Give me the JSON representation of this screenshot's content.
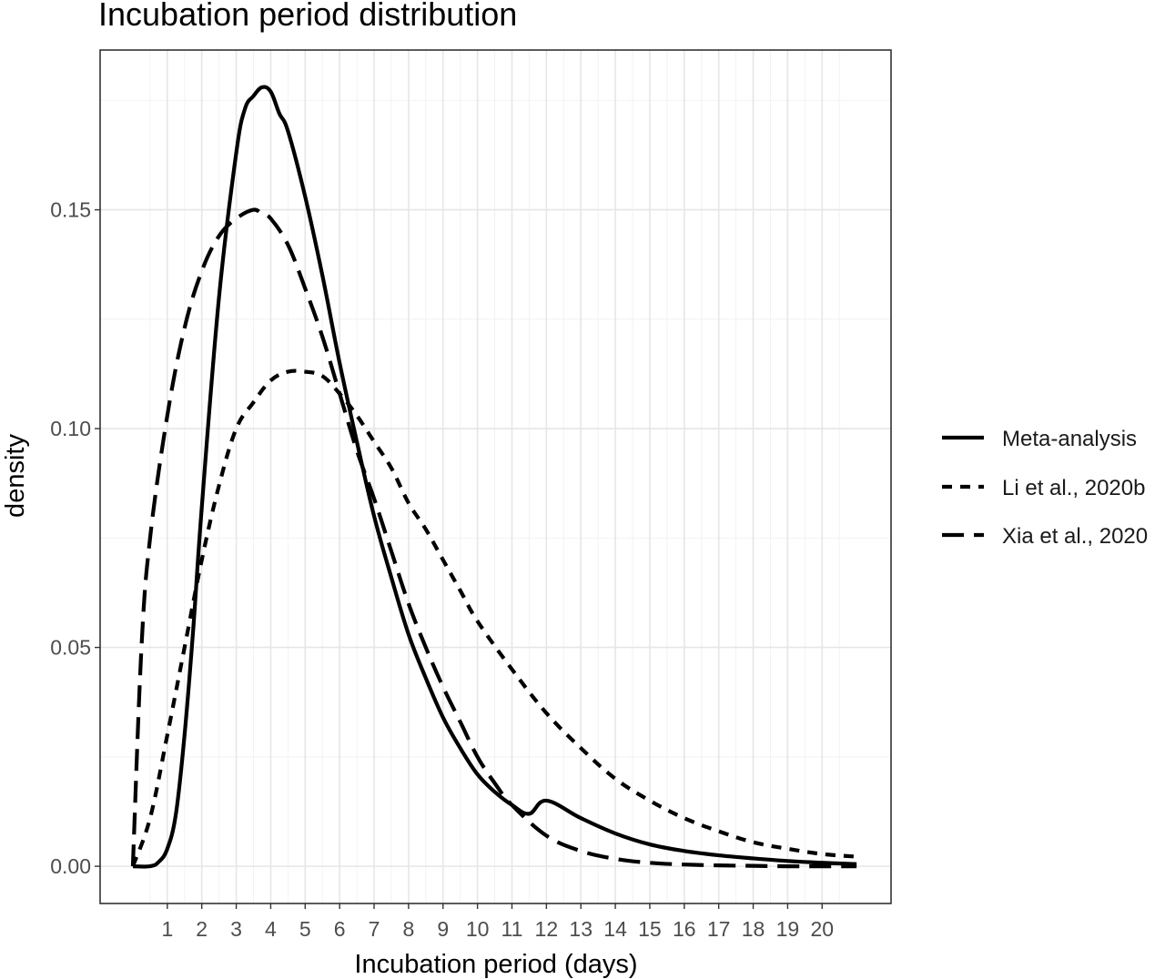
{
  "chart_data": {
    "type": "line",
    "title": "Incubation period distribution",
    "xlabel": "Incubation period (days)",
    "ylabel": "density",
    "xlim": [
      -0.95,
      22.0
    ],
    "ylim": [
      -0.0085,
      0.1865
    ],
    "x_ticks": [
      1,
      2,
      3,
      4,
      5,
      6,
      7,
      8,
      9,
      10,
      11,
      12,
      13,
      14,
      15,
      16,
      17,
      18,
      19,
      20
    ],
    "x_tick_labels": [
      "1",
      "2",
      "3",
      "4",
      "5",
      "6",
      "7",
      "8",
      "9",
      "10",
      "11",
      "12",
      "13",
      "14",
      "15",
      "16",
      "17",
      "18",
      "19",
      "20"
    ],
    "y_ticks": [
      0.0,
      0.05,
      0.1,
      0.15
    ],
    "y_tick_labels": [
      "0.00",
      "0.05",
      "0.10",
      "0.15"
    ],
    "grid": true,
    "legend_position": "right",
    "series": [
      {
        "name": "Meta-analysis",
        "line_style": "solid",
        "x": [
          0,
          0.5,
          0.75,
          1,
          1.25,
          1.5,
          1.75,
          2,
          2.5,
          3,
          3.25,
          3.5,
          3.75,
          4,
          4.25,
          4.5,
          5,
          5.5,
          6,
          6.5,
          7,
          7.5,
          8,
          8.5,
          9,
          9.5,
          10,
          10.5,
          11,
          11.5,
          12,
          13,
          14,
          15,
          16,
          17,
          18,
          19,
          20,
          21
        ],
        "y": [
          0.0,
          0.0,
          0.001,
          0.004,
          0.012,
          0.03,
          0.054,
          0.082,
          0.13,
          0.163,
          0.173,
          0.176,
          0.178,
          0.177,
          0.172,
          0.168,
          0.153,
          0.135,
          0.115,
          0.097,
          0.08,
          0.066,
          0.053,
          0.043,
          0.034,
          0.027,
          0.021,
          0.017,
          0.014,
          0.012,
          0.015,
          0.011,
          0.0075,
          0.005,
          0.0035,
          0.0025,
          0.0018,
          0.0012,
          0.0008,
          0.0005
        ]
      },
      {
        "name": "Li et al., 2020b",
        "line_style": "dotted",
        "x": [
          0,
          0.5,
          1,
          1.5,
          2,
          2.5,
          3,
          3.5,
          4,
          4.5,
          5,
          5.5,
          6,
          6.5,
          7,
          7.5,
          8,
          8.5,
          9,
          9.5,
          10,
          11,
          12,
          13,
          14,
          15,
          16,
          17,
          18,
          19,
          20,
          21
        ],
        "y": [
          0.0,
          0.011,
          0.03,
          0.05,
          0.07,
          0.087,
          0.1,
          0.106,
          0.111,
          0.113,
          0.113,
          0.112,
          0.108,
          0.103,
          0.097,
          0.091,
          0.083,
          0.077,
          0.07,
          0.063,
          0.056,
          0.045,
          0.035,
          0.027,
          0.02,
          0.015,
          0.011,
          0.008,
          0.0055,
          0.004,
          0.0028,
          0.0022
        ]
      },
      {
        "name": "Xia et al., 2020",
        "line_style": "dashed",
        "x": [
          0,
          0.25,
          0.5,
          1,
          1.5,
          2,
          2.5,
          3,
          3.5,
          3.75,
          4,
          4.5,
          5,
          5.5,
          6,
          6.5,
          7,
          7.5,
          8,
          8.5,
          9,
          9.5,
          10,
          10.5,
          11,
          12,
          13,
          14,
          15,
          16,
          17,
          18,
          19,
          20,
          21
        ],
        "y": [
          0.0,
          0.05,
          0.075,
          0.103,
          0.123,
          0.136,
          0.144,
          0.148,
          0.15,
          0.149,
          0.148,
          0.142,
          0.132,
          0.121,
          0.108,
          0.095,
          0.084,
          0.072,
          0.06,
          0.05,
          0.041,
          0.033,
          0.025,
          0.019,
          0.014,
          0.007,
          0.0035,
          0.0017,
          0.0008,
          0.0004,
          0.0002,
          0.0001,
          0.0,
          0.0,
          0.0
        ]
      }
    ]
  }
}
